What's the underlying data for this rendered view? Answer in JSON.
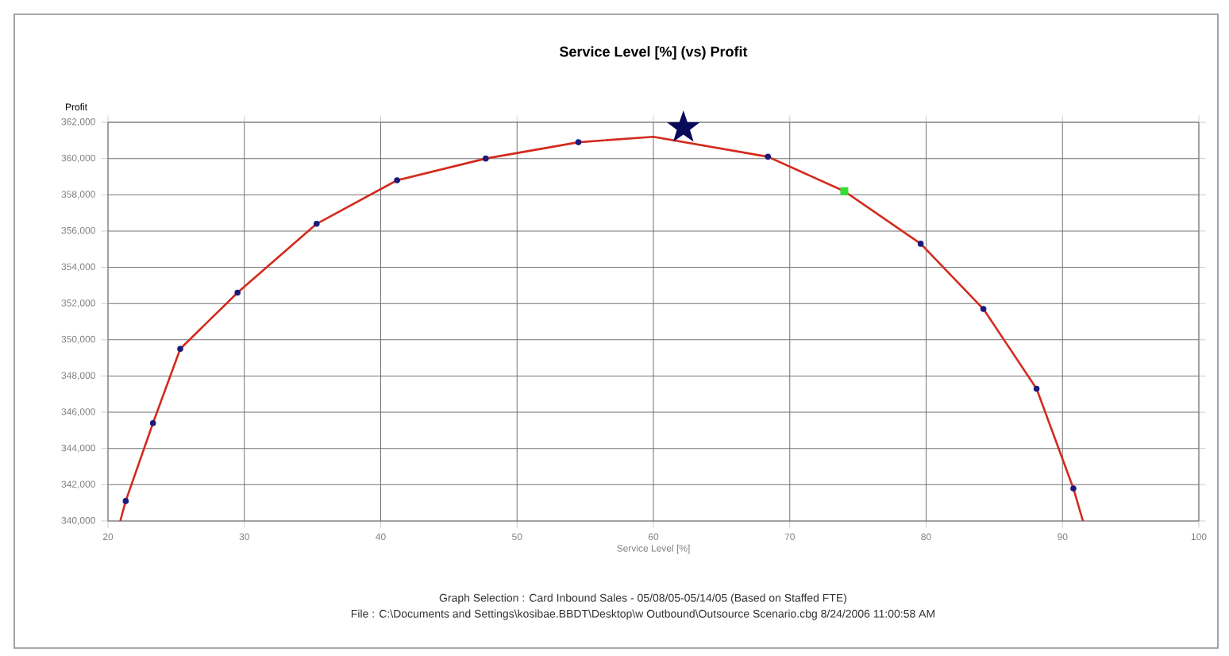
{
  "chart_data": {
    "type": "line",
    "title": "Service Level [%] (vs) Profit",
    "xlabel": "Service Level [%]",
    "ylabel": "Profit",
    "xlim": [
      20,
      100
    ],
    "xticks": [
      20,
      30,
      40,
      50,
      60,
      70,
      80,
      90,
      100
    ],
    "ylim": [
      340000,
      362000
    ],
    "yticks": [
      {
        "value": 340000,
        "label": "340,000"
      },
      {
        "value": 342000,
        "label": "342,000"
      },
      {
        "value": 344000,
        "label": "344,000"
      },
      {
        "value": 346000,
        "label": "346,000"
      },
      {
        "value": 348000,
        "label": "348,000"
      },
      {
        "value": 350000,
        "label": "350,000"
      },
      {
        "value": 352000,
        "label": "352,000"
      },
      {
        "value": 354000,
        "label": "354,000"
      },
      {
        "value": 356000,
        "label": "356,000"
      },
      {
        "value": 358000,
        "label": "358,000"
      },
      {
        "value": 360000,
        "label": "360,000"
      },
      {
        "value": 362000,
        "label": "362,000"
      }
    ],
    "grid": true,
    "series": [
      {
        "color": "#d42a1e",
        "marker": "none",
        "x": [
          20.9,
          21.3,
          23.3,
          25.3,
          29.5,
          35.3,
          41.2,
          47.7,
          54.5,
          60.0,
          68.4,
          74.0,
          79.6,
          84.2,
          88.1,
          90.8,
          91.5
        ],
        "values": [
          340000,
          341100,
          345400,
          349500,
          352600,
          356400,
          358800,
          360000,
          360900,
          361200,
          360100,
          358200,
          355300,
          351700,
          347300,
          341800,
          340000
        ]
      },
      {
        "type": "scatter",
        "color": "#1a1a7a",
        "marker": "circle",
        "x": [
          21.3,
          23.3,
          25.3,
          29.5,
          35.3,
          41.2,
          47.7,
          54.5,
          68.4,
          79.6,
          84.2,
          88.1,
          90.8
        ],
        "values": [
          341100,
          345400,
          349500,
          352600,
          356400,
          358800,
          360000,
          360900,
          360100,
          355300,
          351700,
          347300,
          341800
        ]
      },
      {
        "type": "scatter",
        "color": "#33dd33",
        "marker": "square",
        "x": [
          74.0
        ],
        "values": [
          358200
        ]
      },
      {
        "type": "scatter",
        "color": "#0a0a5a",
        "marker": "star",
        "x": [
          62.2
        ],
        "values": [
          361700
        ]
      }
    ],
    "annotations": [
      "Graph Selection : Card Inbound Sales - 05/08/05-05/14/05 (Based on Staffed FTE)",
      "File : C:\\Documents and Settings\\kosibae.BBDT\\Desktop\\w Outbound\\Outsource Scenario.cbg  8/24/2006 11:00:58 AM"
    ]
  }
}
